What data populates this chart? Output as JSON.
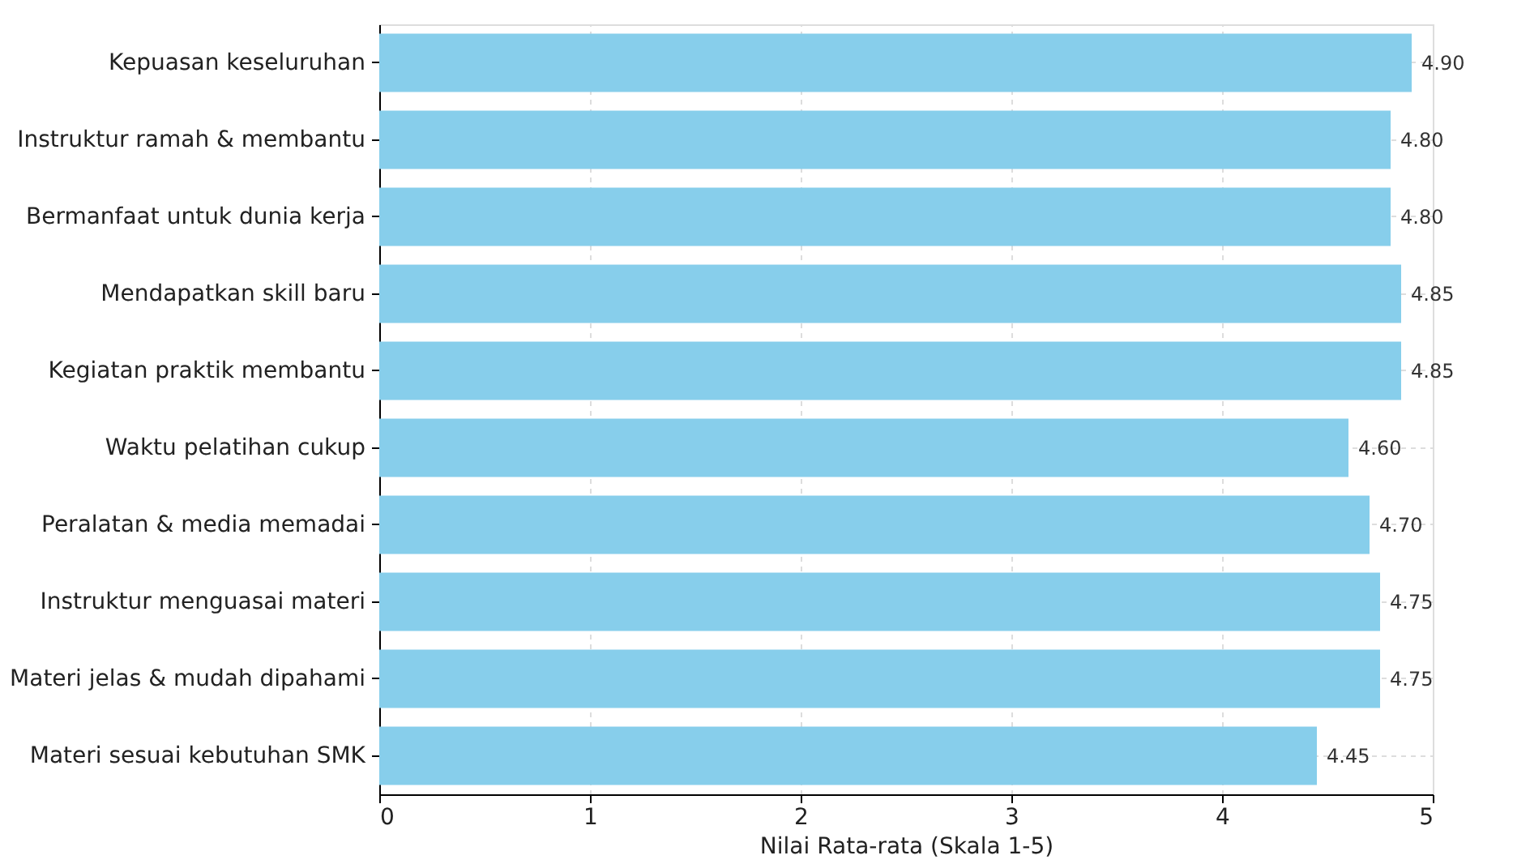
{
  "chart_data": {
    "type": "bar",
    "orientation": "horizontal",
    "xlabel": "Nilai Rata-rata (Skala 1-5)",
    "categories": [
      "Kepuasan keseluruhan",
      "Instruktur ramah & membantu",
      "Bermanfaat untuk dunia kerja",
      "Mendapatkan skill baru",
      "Kegiatan praktik membantu",
      "Waktu pelatihan cukup",
      "Peralatan & media memadai",
      "Instruktur menguasai materi",
      "Materi jelas & mudah dipahami",
      "Materi sesuai kebutuhan SMK"
    ],
    "values": [
      4.9,
      4.8,
      4.8,
      4.85,
      4.85,
      4.6,
      4.7,
      4.75,
      4.75,
      4.45
    ],
    "value_labels": [
      "4.90",
      "4.80",
      "4.80",
      "4.85",
      "4.85",
      "4.60",
      "4.70",
      "4.75",
      "4.75",
      "4.45"
    ],
    "color": "#87ceeb",
    "xlim": [
      0,
      5
    ],
    "xticks": [
      0,
      1,
      2,
      3,
      4,
      5
    ],
    "grid": true
  }
}
